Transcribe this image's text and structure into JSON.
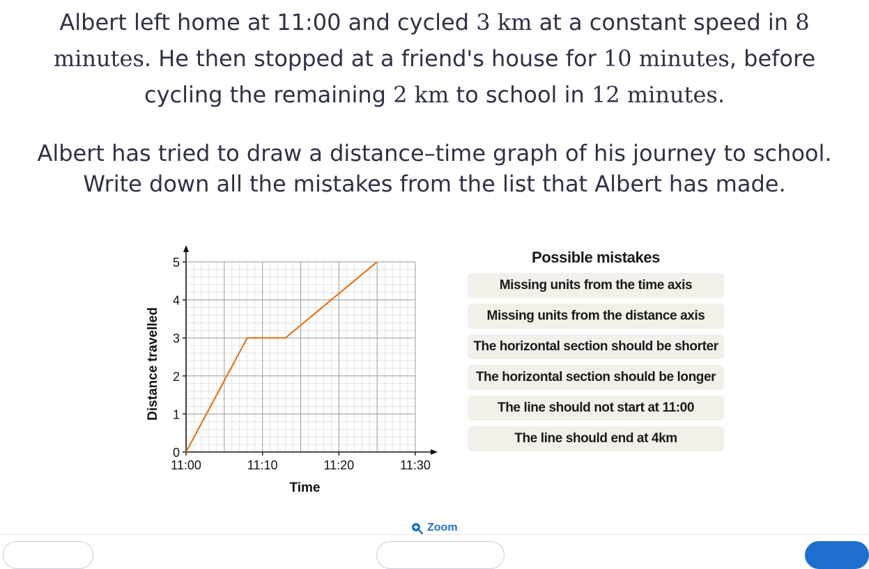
{
  "question": {
    "p1": "Albert left home at 11:00 and cycled ",
    "m1": "3 km",
    "p2": " at a constant speed in ",
    "m2": "8 minutes",
    "p3": ". He then stopped at a friend's house for ",
    "m3": "10 minutes",
    "p4": ", before cycling the remaining ",
    "m4": "2 km",
    "p5": " to school in ",
    "m5": "12 minutes",
    "p6": "."
  },
  "instructions": {
    "line1": "Albert has tried to draw a distance–time graph of his journey to school.",
    "line2": "Write down all the mistakes from the list that Albert has made."
  },
  "chart_data": {
    "type": "line",
    "xlabel": "Time",
    "ylabel": "Distance travelled",
    "x_ticks": [
      "11:00",
      "11:10",
      "11:20",
      "11:30"
    ],
    "y_ticks": [
      "0",
      "1",
      "2",
      "3",
      "4",
      "5"
    ],
    "xlim_minutes_after_11": [
      0,
      30
    ],
    "ylim": [
      0,
      5
    ],
    "grid": true,
    "minor_grid": true,
    "series": [
      {
        "color": "#e8741a",
        "points": [
          {
            "x": "11:00",
            "y": 0
          },
          {
            "x": "11:08",
            "y": 3
          },
          {
            "x": "11:13",
            "y": 3
          },
          {
            "x": "11:25",
            "y": 5
          }
        ]
      }
    ]
  },
  "mistakes": {
    "title": "Possible mistakes",
    "items": [
      "Missing units from the time axis",
      "Missing units from the distance axis",
      "The horizontal section should be shorter",
      "The horizontal section should be longer",
      "The line should not start at 11:00",
      "The line should end at 4km"
    ]
  },
  "zoom": {
    "label": "Zoom",
    "icon": "zoom-in-icon"
  },
  "colors": {
    "accent": "#1f6fd0",
    "line": "#e8741a",
    "option_bg": "#f3f0ea"
  }
}
